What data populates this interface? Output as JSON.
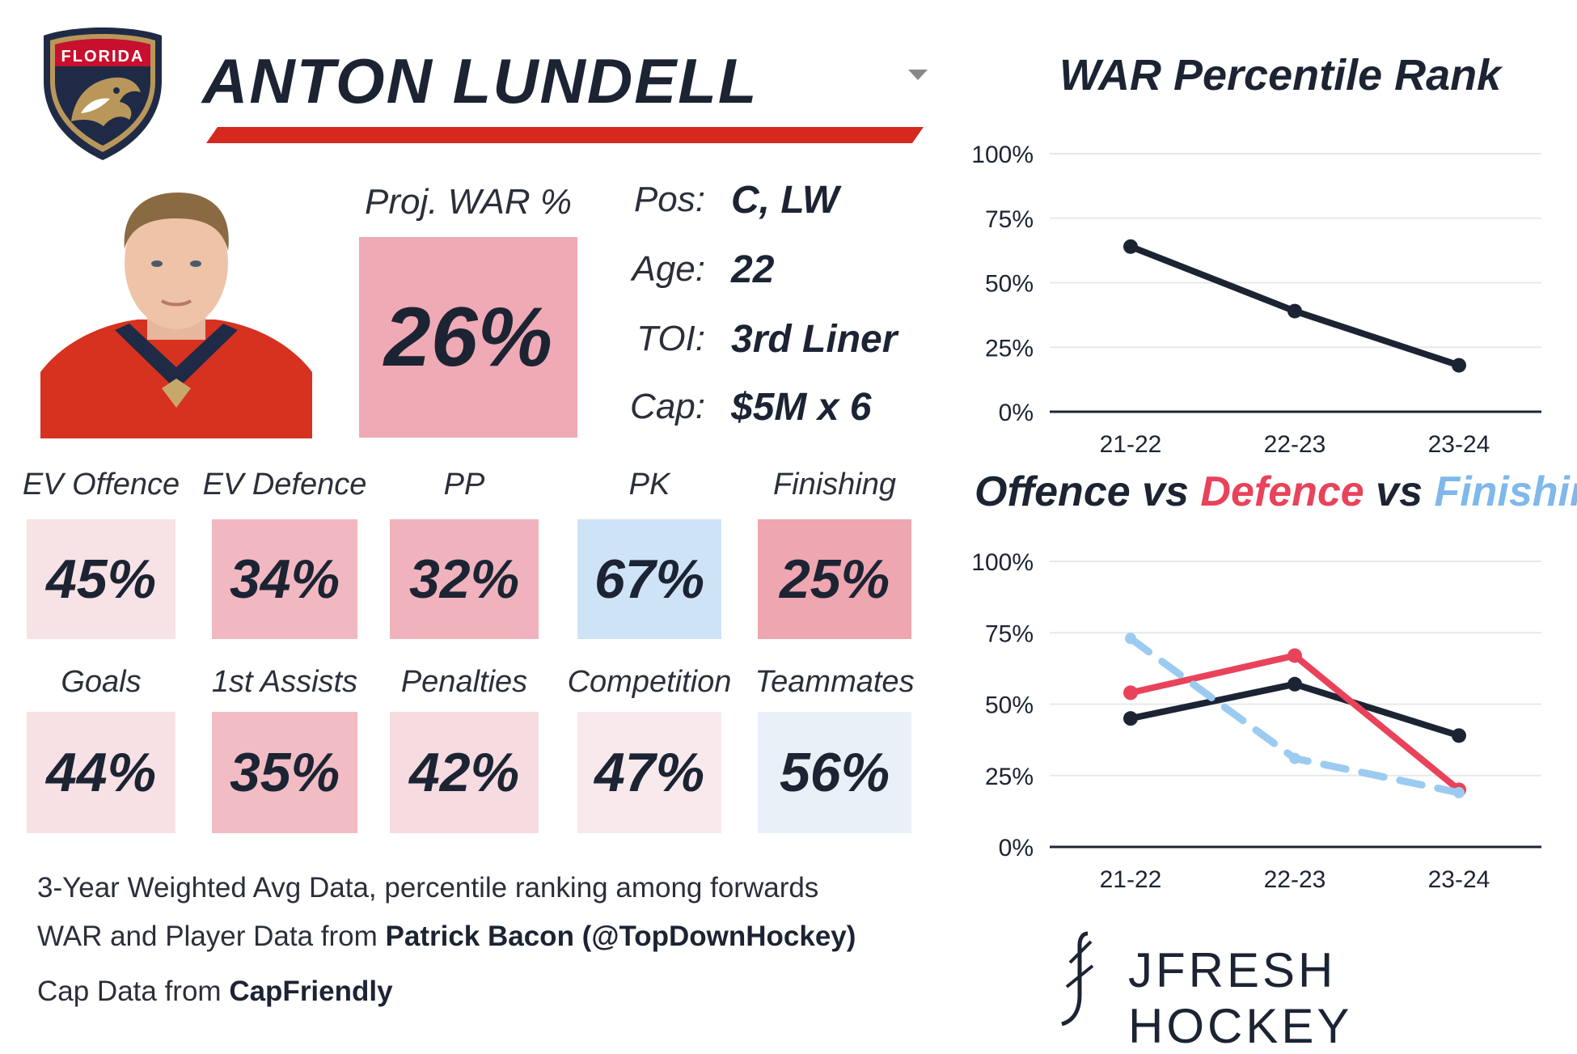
{
  "header": {
    "team_badge_text": "FLORIDA",
    "player_name": "ANTON LUNDELL"
  },
  "projected_war": {
    "label": "Proj. WAR %",
    "value": "26%",
    "color": "#efaab5"
  },
  "bio": [
    {
      "label": "Pos:",
      "value": "C, LW"
    },
    {
      "label": "Age:",
      "value": "22"
    },
    {
      "label": "TOI:",
      "value": "3rd Liner"
    },
    {
      "label": "Cap:",
      "value": "$5M x 6"
    }
  ],
  "stats_row1": [
    {
      "label": "EV Offence",
      "value": "45%",
      "color": "#f7e2e5"
    },
    {
      "label": "EV Defence",
      "value": "34%",
      "color": "#f1b8c1"
    },
    {
      "label": "PP",
      "value": "32%",
      "color": "#f0b3bd"
    },
    {
      "label": "PK",
      "value": "67%",
      "color": "#cfe3f6"
    },
    {
      "label": "Finishing",
      "value": "25%",
      "color": "#eea6b1"
    }
  ],
  "stats_row2": [
    {
      "label": "Goals",
      "value": "44%",
      "color": "#f7e1e5"
    },
    {
      "label": "1st Assists",
      "value": "35%",
      "color": "#f2bcc5"
    },
    {
      "label": "Penalties",
      "value": "42%",
      "color": "#f6dbe0"
    },
    {
      "label": "Competition",
      "value": "47%",
      "color": "#f8e9ec"
    },
    {
      "label": "Teammates",
      "value": "56%",
      "color": "#e9f0f8"
    }
  ],
  "footer": {
    "line1": "3-Year Weighted Avg Data, percentile ranking among forwards",
    "line2_prefix": "WAR and Player Data from ",
    "line2_bold": "Patrick Bacon (@TopDownHockey)",
    "line3_prefix": "Cap Data from ",
    "line3_bold": "CapFriendly"
  },
  "brand": "JFRESH HOCKEY",
  "chart_data": [
    {
      "type": "line",
      "title": "WAR Percentile Rank",
      "categories": [
        "21-22",
        "22-23",
        "23-24"
      ],
      "series": [
        {
          "values": [
            64,
            39,
            18
          ],
          "color": "#1c2433",
          "style": "solid"
        }
      ],
      "yticks": [
        "0%",
        "25%",
        "50%",
        "75%",
        "100%"
      ],
      "ylim": [
        0,
        100
      ],
      "grid": true
    },
    {
      "type": "line",
      "title_parts": [
        {
          "text": "Offence",
          "color": "#1c2433"
        },
        {
          "text": " vs ",
          "color": "#1c2433"
        },
        {
          "text": "Defence",
          "color": "#e8435a"
        },
        {
          "text": " vs ",
          "color": "#1c2433"
        },
        {
          "text": "Finishing",
          "color": "#7fb8ea"
        }
      ],
      "categories": [
        "21-22",
        "22-23",
        "23-24"
      ],
      "series": [
        {
          "values": [
            45,
            57,
            39
          ],
          "color": "#1c2433",
          "style": "solid"
        },
        {
          "values": [
            54,
            67,
            20
          ],
          "color": "#e8435a",
          "style": "solid"
        },
        {
          "values": [
            73,
            31,
            19
          ],
          "color": "#9ccbf1",
          "style": "dashed"
        }
      ],
      "yticks": [
        "0%",
        "25%",
        "50%",
        "75%",
        "100%"
      ],
      "ylim": [
        0,
        100
      ],
      "grid": true
    }
  ]
}
